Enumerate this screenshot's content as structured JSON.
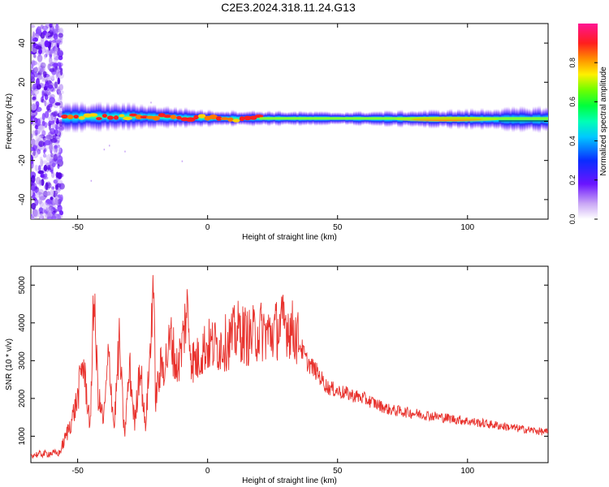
{
  "title": "C2E3.2024.318.11.24.G13",
  "chart_data": [
    {
      "type": "heatmap",
      "xlabel": "Height of straight line (km)",
      "ylabel": "Frequency (Hz)",
      "xlim": [
        -68,
        131
      ],
      "ylim": [
        -50,
        50
      ],
      "xticks": [
        -50,
        0,
        50,
        100
      ],
      "yticks": [
        -40,
        -20,
        0,
        20,
        40
      ],
      "colorbar": {
        "label": "Normalized spectral amplitude",
        "range": [
          0,
          1
        ],
        "ticks": [
          "0.0",
          "0.2",
          "0.4",
          "0.6",
          "0.8"
        ]
      },
      "description_points": [
        {
          "x": -60,
          "note": "noise region left of -56 km"
        },
        {
          "x": -56,
          "y": 2
        },
        {
          "x": 0,
          "y": 1.5
        },
        {
          "x": 50,
          "y": 1.5
        },
        {
          "x": 100,
          "y": 1.0
        },
        {
          "x": 131,
          "y": 1.0
        }
      ],
      "band_center_hz": [
        {
          "x": -56,
          "y": 2.0
        },
        {
          "x": -30,
          "y": 2.5
        },
        {
          "x": 0,
          "y": 1.5
        },
        {
          "x": 50,
          "y": 1.5
        },
        {
          "x": 90,
          "y": 1.2
        },
        {
          "x": 131,
          "y": 1.0
        }
      ],
      "band_halfwidth_hz": [
        {
          "x": -56,
          "y": 4.5
        },
        {
          "x": -30,
          "y": 4.0
        },
        {
          "x": 0,
          "y": 2.5
        },
        {
          "x": 50,
          "y": 2.0
        },
        {
          "x": 100,
          "y": 3.0
        },
        {
          "x": 131,
          "y": 4.0
        }
      ]
    },
    {
      "type": "line",
      "xlabel": "Height of straight line (km)",
      "ylabel": "SNR (10 * v/v)",
      "xlim": [
        -68,
        131
      ],
      "ylim": [
        300,
        5500
      ],
      "xticks": [
        -50,
        0,
        50,
        100
      ],
      "yticks": [
        1000,
        2000,
        3000,
        4000,
        5000
      ],
      "color": "#e8322d",
      "series": [
        {
          "x": [
            -68,
            -60,
            -57,
            -55,
            -52,
            -50,
            -48,
            -45,
            -44,
            -42,
            -40,
            -38,
            -36,
            -34,
            -32,
            -30,
            -28,
            -26,
            -24,
            -22,
            -21,
            -20,
            -18,
            -16,
            -14,
            -12,
            -10,
            -8,
            -6,
            -4,
            -2,
            0,
            4,
            8,
            12,
            16,
            20,
            24,
            28,
            30,
            34,
            38,
            42,
            46,
            50,
            55,
            60,
            65,
            70,
            80,
            90,
            100,
            110,
            120,
            131
          ],
          "y": [
            500,
            550,
            550,
            900,
            1500,
            2000,
            3000,
            1200,
            4900,
            2000,
            1400,
            3200,
            1200,
            3500,
            1000,
            2800,
            1300,
            3000,
            1200,
            3300,
            5300,
            2000,
            2800,
            3000,
            3600,
            2800,
            3300,
            4400,
            3000,
            3000,
            3300,
            3400,
            3400,
            3500,
            3800,
            3600,
            3800,
            3700,
            3900,
            4000,
            3700,
            3000,
            2700,
            2300,
            2200,
            2100,
            2000,
            1850,
            1700,
            1600,
            1500,
            1400,
            1300,
            1200,
            1100
          ]
        }
      ]
    }
  ]
}
